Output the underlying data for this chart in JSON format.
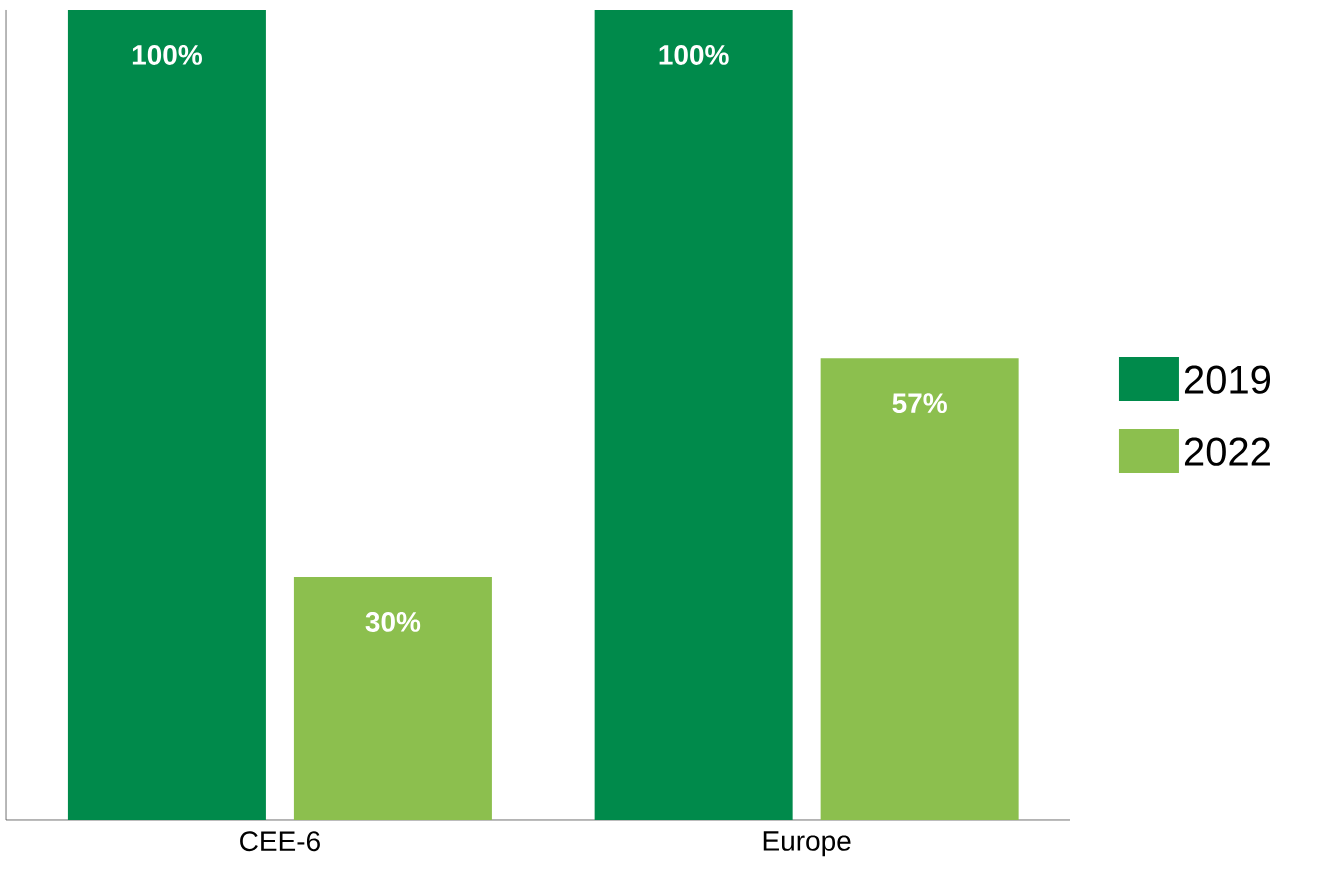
{
  "chart_data": {
    "type": "bar",
    "categories": [
      "CEE-6",
      "Europe"
    ],
    "ylim": [
      0,
      100
    ],
    "series": [
      {
        "name": "2019",
        "color": "#008a4b",
        "values": [
          100,
          100
        ],
        "value_labels": [
          "100%",
          "100%"
        ]
      },
      {
        "name": "2022",
        "color": "#8cbf4e",
        "values": [
          30,
          57
        ],
        "value_labels": [
          "30%",
          "57%"
        ]
      }
    ],
    "legend": "right"
  }
}
